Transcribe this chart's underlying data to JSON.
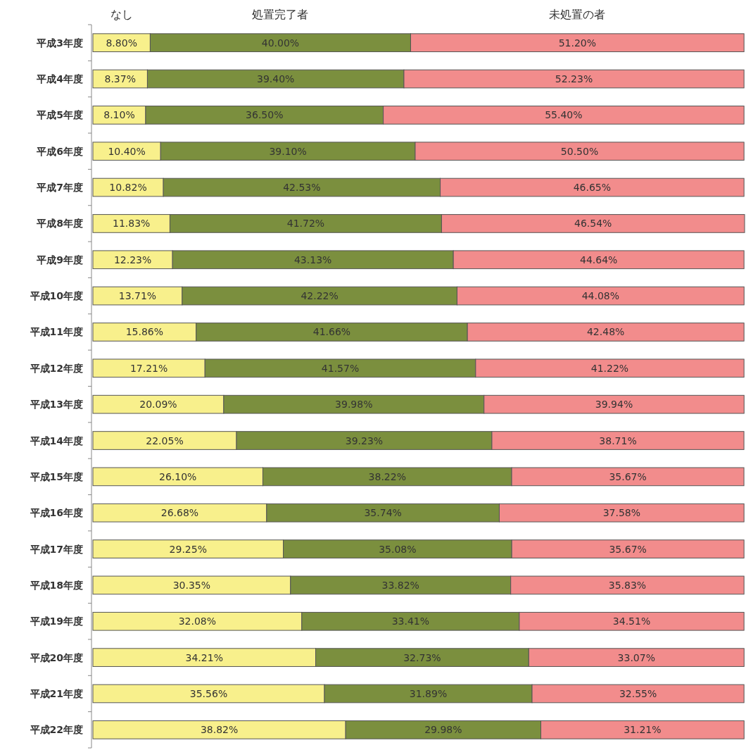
{
  "chart_data": {
    "type": "bar",
    "orientation": "horizontal",
    "stacked": true,
    "legend": "top",
    "categories": [
      "平成3年度",
      "平成4年度",
      "平成5年度",
      "平成6年度",
      "平成7年度",
      "平成8年度",
      "平成9年度",
      "平成10年度",
      "平成11年度",
      "平成12年度",
      "平成13年度",
      "平成14年度",
      "平成15年度",
      "平成16年度",
      "平成17年度",
      "平成18年度",
      "平成19年度",
      "平成20年度",
      "平成21年度",
      "平成22年度"
    ],
    "series": [
      {
        "name": "なし",
        "color": "#f8f08c",
        "values": [
          8.8,
          8.37,
          8.1,
          10.4,
          10.82,
          11.83,
          12.23,
          13.71,
          15.86,
          17.21,
          20.09,
          22.05,
          26.1,
          26.68,
          29.25,
          30.35,
          32.08,
          34.21,
          35.56,
          38.82
        ],
        "value_labels": [
          "8.80%",
          "8.37%",
          "8.10%",
          "10.40%",
          "10.82%",
          "11.83%",
          "12.23%",
          "13.71%",
          "15.86%",
          "17.21%",
          "20.09%",
          "22.05%",
          "26.10%",
          "26.68%",
          "29.25%",
          "30.35%",
          "32.08%",
          "34.21%",
          "35.56%",
          "38.82%"
        ]
      },
      {
        "name": "処置完了者",
        "color": "#7b8f3e",
        "values": [
          40.0,
          39.4,
          36.5,
          39.1,
          42.53,
          41.72,
          43.13,
          42.22,
          41.66,
          41.57,
          39.98,
          39.23,
          38.22,
          35.74,
          35.08,
          33.82,
          33.41,
          32.73,
          31.89,
          29.98
        ],
        "value_labels": [
          "40.00%",
          "39.40%",
          "36.50%",
          "39.10%",
          "42.53%",
          "41.72%",
          "43.13%",
          "42.22%",
          "41.66%",
          "41.57%",
          "39.98%",
          "39.23%",
          "38.22%",
          "35.74%",
          "35.08%",
          "33.82%",
          "33.41%",
          "32.73%",
          "31.89%",
          "29.98%"
        ]
      },
      {
        "name": "未処置の者",
        "color": "#f28c8c",
        "values": [
          51.2,
          52.23,
          55.4,
          50.5,
          46.65,
          46.54,
          44.64,
          44.08,
          42.48,
          41.22,
          39.94,
          38.71,
          35.67,
          37.58,
          35.67,
          35.83,
          34.51,
          33.07,
          32.55,
          31.21
        ],
        "value_labels": [
          "51.20%",
          "52.23%",
          "55.40%",
          "50.50%",
          "46.65%",
          "46.54%",
          "44.64%",
          "44.08%",
          "42.48%",
          "41.22%",
          "39.94%",
          "38.71%",
          "35.67%",
          "37.58%",
          "35.67%",
          "35.83%",
          "34.51%",
          "33.07%",
          "32.55%",
          "31.21%"
        ]
      }
    ]
  }
}
